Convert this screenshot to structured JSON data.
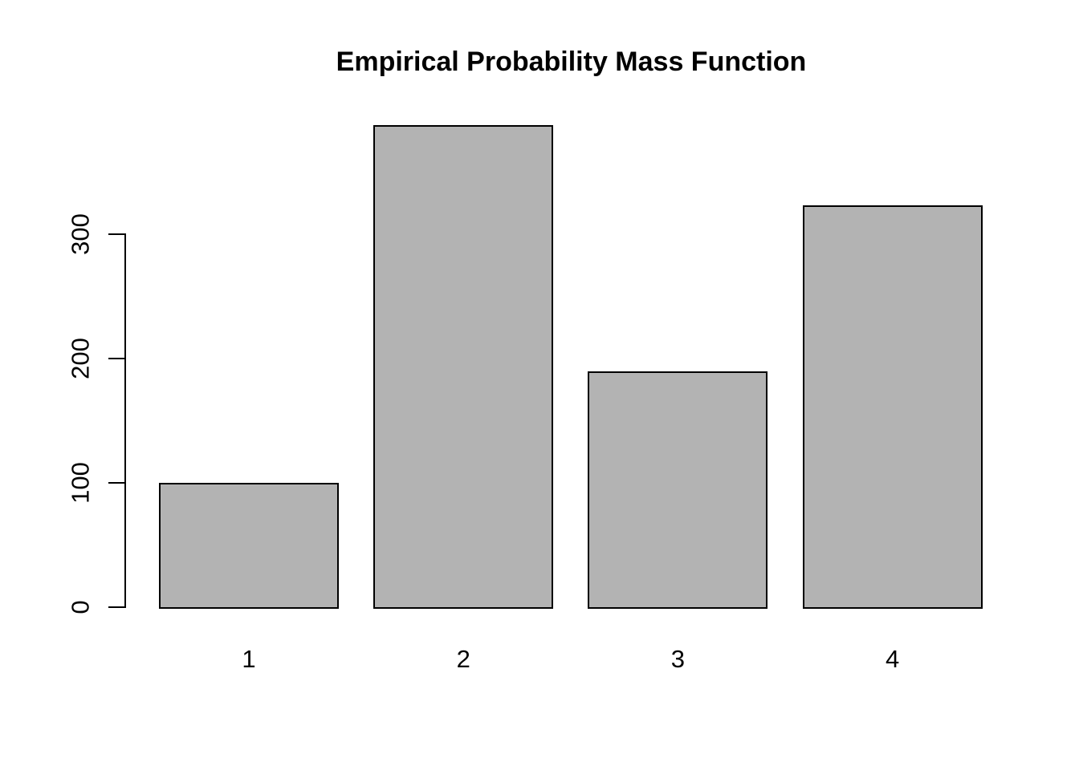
{
  "page": {
    "background": "#ffffff"
  },
  "chart_data": {
    "type": "bar",
    "title": "Empirical Probability Mass Function",
    "categories": [
      "1",
      "2",
      "3",
      "4"
    ],
    "values": [
      100,
      388,
      190,
      323
    ],
    "xlabel": "",
    "ylabel": "",
    "ylim": [
      0,
      388
    ],
    "yticks": [
      0,
      100,
      200,
      300
    ],
    "grid": "off",
    "legend": "none",
    "colors": {
      "bar_fill": "#b3b3b3",
      "bar_border": "#000000",
      "axis": "#000000",
      "text": "#000000",
      "background": "#ffffff"
    }
  }
}
